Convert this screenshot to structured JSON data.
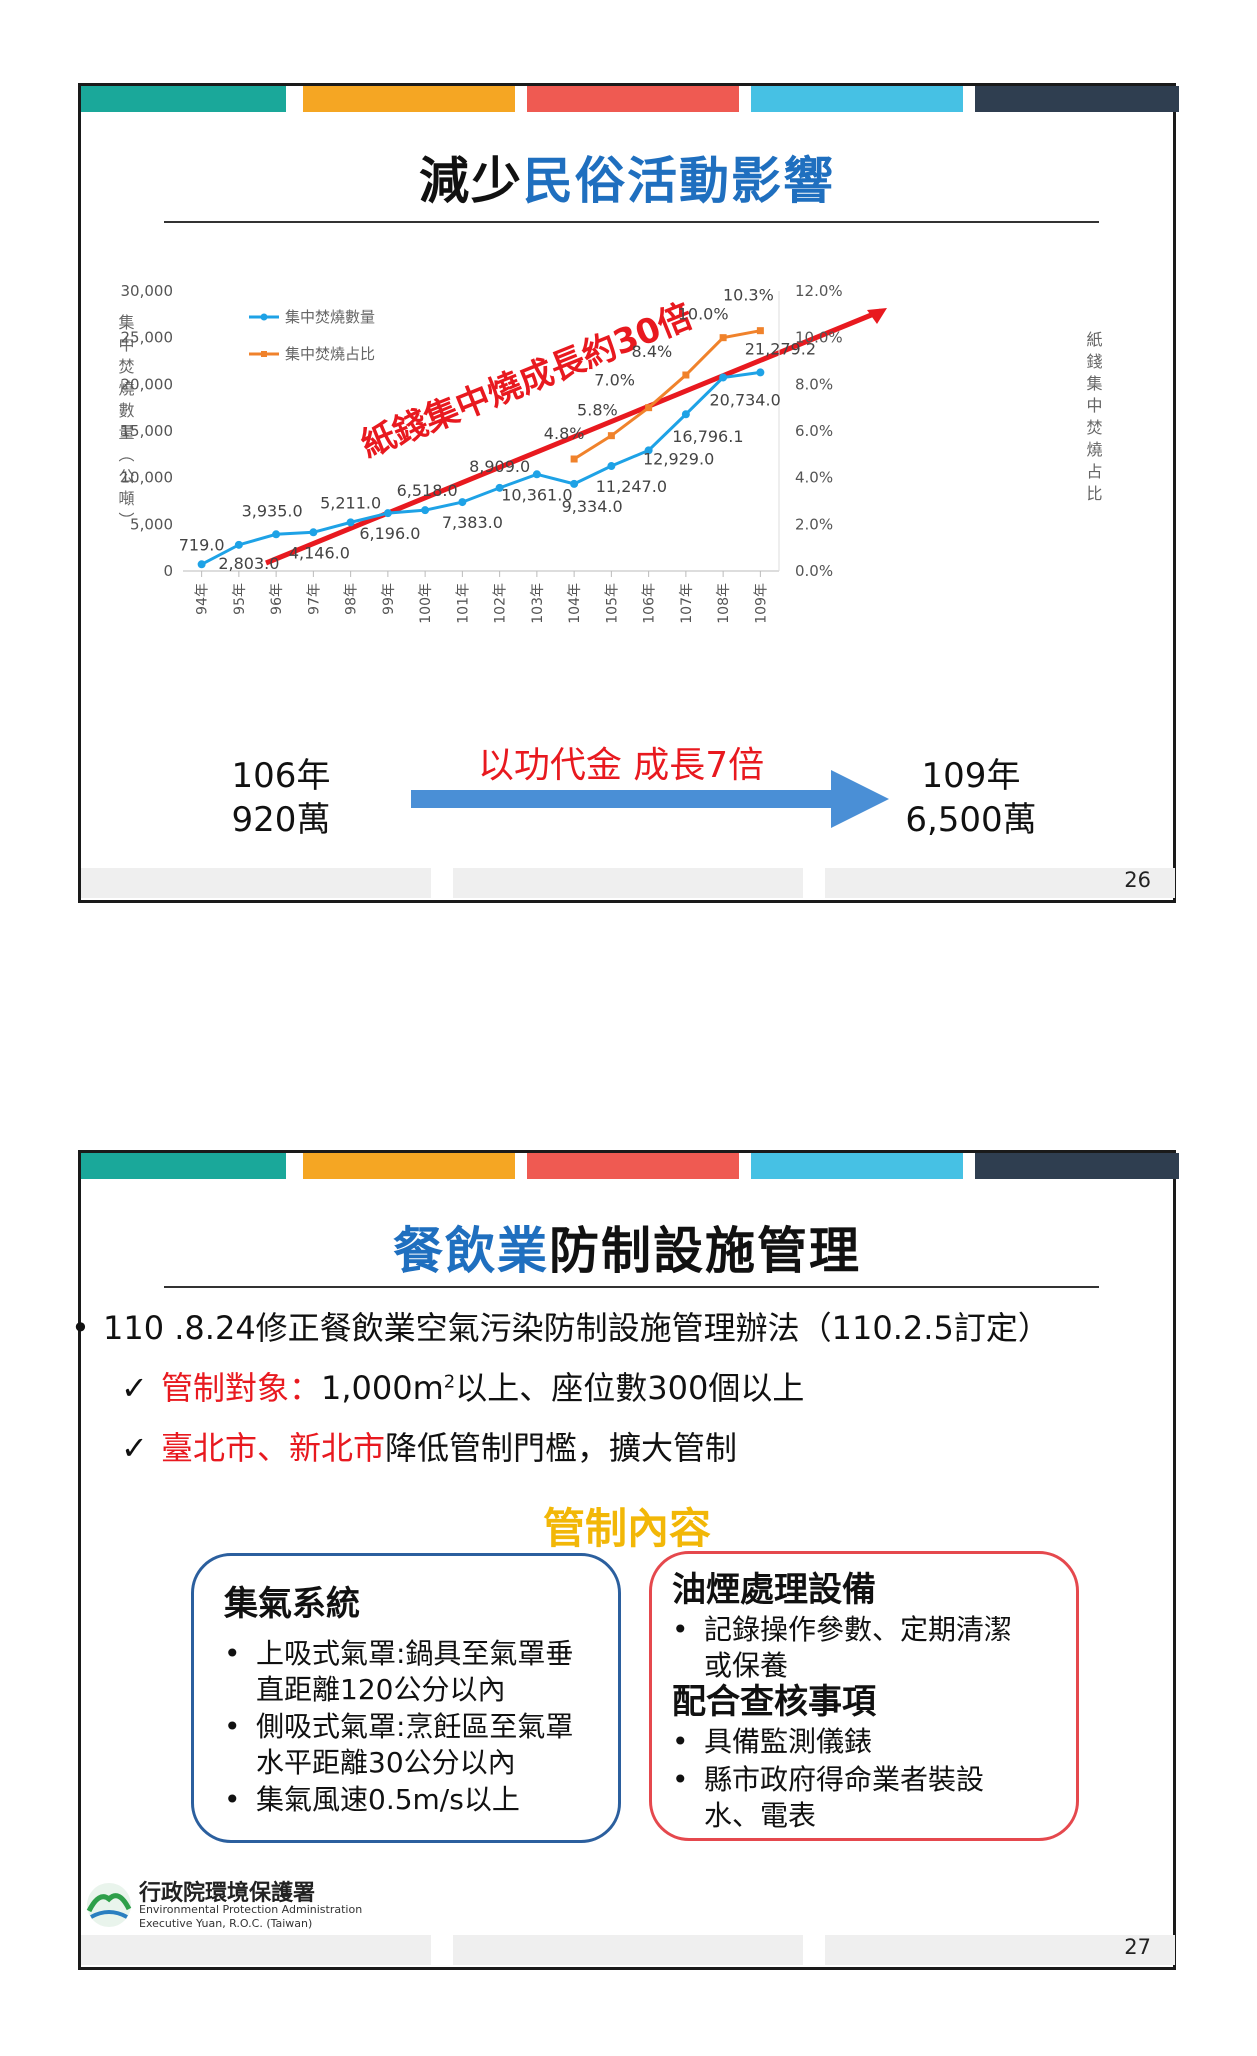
{
  "slide1": {
    "title_part1": "減少",
    "title_part2": "民俗活動影響",
    "page_number": "26",
    "arrow_label": "紙錢集中燒成長約30倍",
    "left_stat_line1": "106年",
    "left_stat_line2": "920萬",
    "center_label": "以功代金 成長7倍",
    "right_stat_line1": "109年",
    "right_stat_line2": "6,500萬"
  },
  "chart_data": {
    "type": "line",
    "categories": [
      "94年",
      "95年",
      "96年",
      "97年",
      "98年",
      "99年",
      "100年",
      "101年",
      "102年",
      "103年",
      "104年",
      "105年",
      "106年",
      "107年",
      "108年",
      "109年"
    ],
    "ylabel": "集中焚燒數量（公噸）",
    "y2label": "紙錢集中焚燒占比",
    "ylim": [
      0,
      30000
    ],
    "y2lim": [
      0,
      12
    ],
    "yticks": [
      "0",
      "5,000",
      "10,000",
      "15,000",
      "20,000",
      "25,000",
      "30,000"
    ],
    "y2ticks": [
      "0.0%",
      "2.0%",
      "4.0%",
      "6.0%",
      "8.0%",
      "10.0%",
      "12.0%"
    ],
    "legend_position": "top-left",
    "series": [
      {
        "name": "集中焚燒數量",
        "color": "#1ea2e6",
        "axis": "left",
        "values": [
          719.0,
          2803.0,
          3935.0,
          4146.0,
          5211.0,
          6196.0,
          6518.0,
          7383.0,
          8909.0,
          10361.0,
          9334.0,
          11247.0,
          12929.0,
          16796.1,
          20734.0,
          21279.2
        ],
        "labels": [
          "719.0",
          "2,803.0",
          "3,935.0",
          "4,146.0",
          "5,211.0",
          "6,196.0",
          "6,518.0",
          "7,383.0",
          "8,909.0",
          "10,361.0",
          "9,334.0",
          "11,247.0",
          "12,929.0",
          "16,796.1",
          "20,734.0",
          "21,279.2"
        ]
      },
      {
        "name": "集中焚燒占比",
        "color": "#f0822b",
        "axis": "right",
        "values": [
          null,
          null,
          null,
          null,
          null,
          null,
          null,
          null,
          null,
          null,
          4.8,
          5.8,
          7.0,
          8.4,
          10.0,
          10.3
        ],
        "labels": [
          "",
          "",
          "",
          "",
          "",
          "",
          "",
          "",
          "",
          "",
          "4.8%",
          "5.8%",
          "7.0%",
          "8.4%",
          "10.0%",
          "10.3%"
        ]
      }
    ]
  },
  "slide2": {
    "title_part1": "餐飲業",
    "title_part2": "防制設施管理",
    "page_number": "27",
    "bullet1": "110 .8.24修正餐飲業空氣污染防制設施管理辦法（110.2.5訂定）",
    "check1_red": "管制對象：",
    "check1_rest_a": "1,000m",
    "check1_sup": "2",
    "check1_rest_b": "以上、座位數300個以上",
    "check2_red": "臺北市、新北市",
    "check2_rest": "降低管制門檻，擴大管制",
    "section_heading": "管制內容",
    "box_left": {
      "heading": "集氣系統",
      "items": [
        "上吸式氣罩:鍋具至氣罩垂直距離120公分以內",
        "側吸式氣罩:烹飪區至氣罩水平距離30公分以內",
        "集氣風速0.5m/s以上"
      ]
    },
    "box_right": {
      "heading1": "油煙處理設備",
      "items1": [
        "記錄操作參數、定期清潔或保養"
      ],
      "heading2": "配合查核事項",
      "items2": [
        "具備監測儀錶",
        "縣市政府得命業者裝設水、電表"
      ]
    },
    "logo_text_cn": "行政院環境保護署",
    "logo_text_en1": "Environmental Protection Administration",
    "logo_text_en2": "Executive Yuan, R.O.C. (Taiwan)"
  },
  "colors": {
    "bar_teal": "#1aa89a",
    "bar_yellow": "#f5a623",
    "bar_red": "#ef5a52",
    "bar_cyan": "#46c1e4",
    "bar_navy": "#2f3e50",
    "blue_title": "#1f6fbf",
    "red": "#e8191f",
    "gold": "#f2b707",
    "box_blue": "#2b5f9e",
    "box_red": "#e5484d",
    "arrow_blue": "#4a8fd6"
  }
}
